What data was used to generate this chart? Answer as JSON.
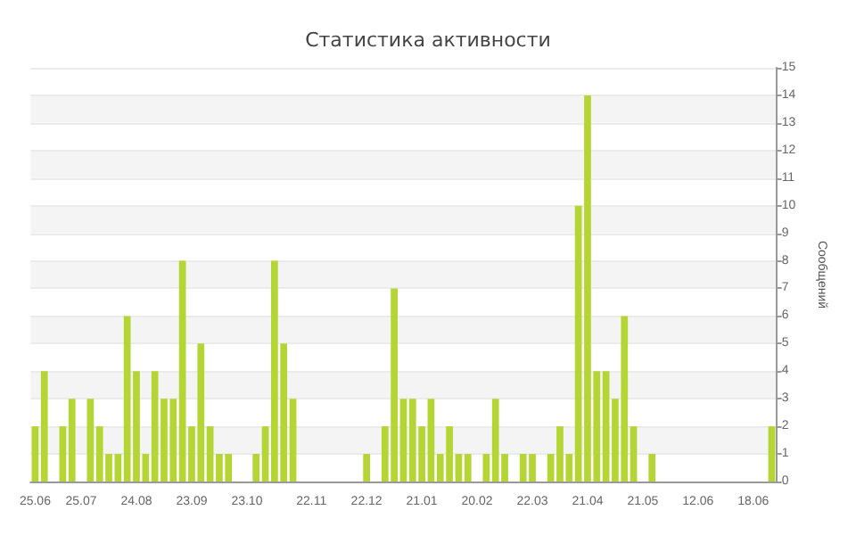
{
  "chart_data": {
    "type": "bar",
    "title": "Статистика активности",
    "ylabel": "Сообщений",
    "categories": [
      "25.06",
      null,
      null,
      null,
      null,
      "25.07",
      null,
      null,
      null,
      null,
      null,
      "24.08",
      null,
      null,
      null,
      null,
      null,
      "23.09",
      null,
      null,
      null,
      null,
      null,
      "23.10",
      null,
      null,
      null,
      null,
      null,
      null,
      "22.11",
      null,
      null,
      null,
      null,
      null,
      "22.12",
      null,
      null,
      null,
      null,
      null,
      "21.01",
      null,
      null,
      null,
      null,
      null,
      "20.02",
      null,
      null,
      null,
      null,
      null,
      "22.03",
      null,
      null,
      null,
      null,
      null,
      "21.04",
      null,
      null,
      null,
      null,
      null,
      "21.05",
      null,
      null,
      null,
      null,
      null,
      "12.06",
      null,
      null,
      null,
      null,
      null,
      "18.06",
      null,
      null
    ],
    "values": [
      2,
      4,
      0,
      2,
      3,
      0,
      3,
      2,
      1,
      1,
      6,
      4,
      1,
      4,
      3,
      3,
      8,
      2,
      5,
      2,
      1,
      1,
      0,
      0,
      1,
      2,
      8,
      5,
      3,
      0,
      0,
      0,
      0,
      0,
      0,
      0,
      1,
      0,
      2,
      7,
      3,
      3,
      2,
      3,
      1,
      2,
      1,
      1,
      0,
      1,
      3,
      1,
      0,
      1,
      1,
      0,
      1,
      2,
      1,
      10,
      14,
      4,
      4,
      3,
      6,
      2,
      0,
      1,
      0,
      0,
      0,
      0,
      0,
      0,
      0,
      0,
      0,
      0,
      0,
      0,
      2
    ],
    "color": "#b5d534",
    "ylim": [
      0,
      15
    ],
    "yticks": [
      0,
      1,
      2,
      3,
      4,
      5,
      6,
      7,
      8,
      9,
      10,
      11,
      12,
      13,
      14,
      15
    ],
    "grid": "y"
  }
}
